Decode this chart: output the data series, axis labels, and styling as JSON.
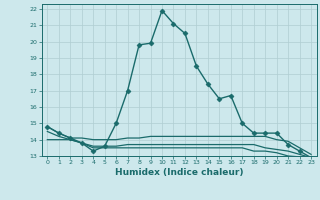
{
  "xlabel": "Humidex (Indice chaleur)",
  "background_color": "#cde8ec",
  "grid_color": "#b0ced2",
  "line_color": "#1a6b6b",
  "xlim": [
    -0.5,
    23.5
  ],
  "ylim": [
    13,
    22.3
  ],
  "yticks": [
    13,
    14,
    15,
    16,
    17,
    18,
    19,
    20,
    21,
    22
  ],
  "xticks": [
    0,
    1,
    2,
    3,
    4,
    5,
    6,
    7,
    8,
    9,
    10,
    11,
    12,
    13,
    14,
    15,
    16,
    17,
    18,
    19,
    20,
    21,
    22,
    23
  ],
  "series": [
    {
      "x": [
        0,
        1,
        2,
        3,
        4,
        5,
        6,
        7,
        8,
        9,
        10,
        11,
        12,
        13,
        14,
        15,
        16,
        17,
        18,
        19,
        20,
        21,
        22,
        23
      ],
      "y": [
        14.8,
        14.4,
        14.1,
        13.8,
        13.3,
        13.6,
        15.0,
        17.0,
        19.8,
        19.9,
        21.9,
        21.1,
        20.5,
        18.5,
        17.4,
        16.5,
        16.7,
        15.0,
        14.4,
        14.4,
        14.4,
        13.7,
        13.3,
        12.9
      ],
      "marker": "D",
      "markersize": 2.5,
      "linewidth": 1.0
    },
    {
      "x": [
        0,
        1,
        2,
        3,
        4,
        5,
        6,
        7,
        8,
        9,
        10,
        11,
        12,
        13,
        14,
        15,
        16,
        17,
        18,
        19,
        20,
        21,
        22,
        23
      ],
      "y": [
        14.8,
        14.4,
        14.1,
        14.1,
        14.0,
        14.0,
        14.0,
        14.1,
        14.1,
        14.2,
        14.2,
        14.2,
        14.2,
        14.2,
        14.2,
        14.2,
        14.2,
        14.2,
        14.2,
        14.2,
        14.0,
        13.9,
        13.5,
        13.1
      ],
      "marker": null,
      "linewidth": 0.9
    },
    {
      "x": [
        0,
        1,
        2,
        3,
        4,
        5,
        6,
        7,
        8,
        9,
        10,
        11,
        12,
        13,
        14,
        15,
        16,
        17,
        18,
        19,
        20,
        21,
        22,
        23
      ],
      "y": [
        14.5,
        14.2,
        14.0,
        13.8,
        13.6,
        13.6,
        13.6,
        13.7,
        13.7,
        13.7,
        13.7,
        13.7,
        13.7,
        13.7,
        13.7,
        13.7,
        13.7,
        13.7,
        13.7,
        13.5,
        13.4,
        13.3,
        13.1,
        12.9
      ],
      "marker": null,
      "linewidth": 0.9
    },
    {
      "x": [
        0,
        1,
        2,
        3,
        4,
        5,
        6,
        7,
        8,
        9,
        10,
        11,
        12,
        13,
        14,
        15,
        16,
        17,
        18,
        19,
        20,
        21,
        22,
        23
      ],
      "y": [
        14.0,
        14.0,
        14.0,
        13.8,
        13.5,
        13.5,
        13.5,
        13.5,
        13.5,
        13.5,
        13.5,
        13.5,
        13.5,
        13.5,
        13.5,
        13.5,
        13.5,
        13.5,
        13.3,
        13.3,
        13.2,
        13.0,
        12.95,
        12.9
      ],
      "marker": null,
      "linewidth": 0.9
    }
  ]
}
